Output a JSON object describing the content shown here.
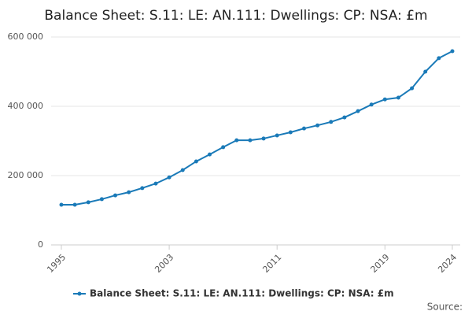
{
  "chart_data": {
    "type": "line",
    "title": "Balance Sheet: S.11: LE: AN.111: Dwellings: CP: NSA: £m",
    "x": [
      1995,
      1996,
      1997,
      1998,
      1999,
      2000,
      2001,
      2002,
      2003,
      2004,
      2005,
      2006,
      2007,
      2008,
      2009,
      2010,
      2011,
      2012,
      2013,
      2014,
      2015,
      2016,
      2017,
      2018,
      2019,
      2020,
      2021,
      2022,
      2023,
      2024
    ],
    "series": [
      {
        "name": "Balance Sheet: S.11: LE: AN.111: Dwellings: CP: NSA: £m",
        "color": "#1a7ab8",
        "values": [
          116000,
          116000,
          123000,
          132000,
          143000,
          152000,
          164000,
          177000,
          195000,
          216000,
          241000,
          261000,
          282000,
          302000,
          302000,
          307000,
          316000,
          325000,
          336000,
          345000,
          355000,
          368000,
          386000,
          405000,
          420000,
          425000,
          452000,
          500000,
          539000,
          559000
        ]
      }
    ],
    "xlim": [
      1995,
      2024
    ],
    "xticks": [
      1995,
      2003,
      2011,
      2019,
      2024
    ],
    "ylim": [
      0,
      600000
    ],
    "yticks": [
      0,
      {
        "value": 200000,
        "label": "200 000"
      },
      {
        "value": 400000,
        "label": "400 000"
      },
      {
        "value": 600000,
        "label": "600 000"
      }
    ],
    "grid": true,
    "legend": "bottom",
    "source": "Source:"
  }
}
